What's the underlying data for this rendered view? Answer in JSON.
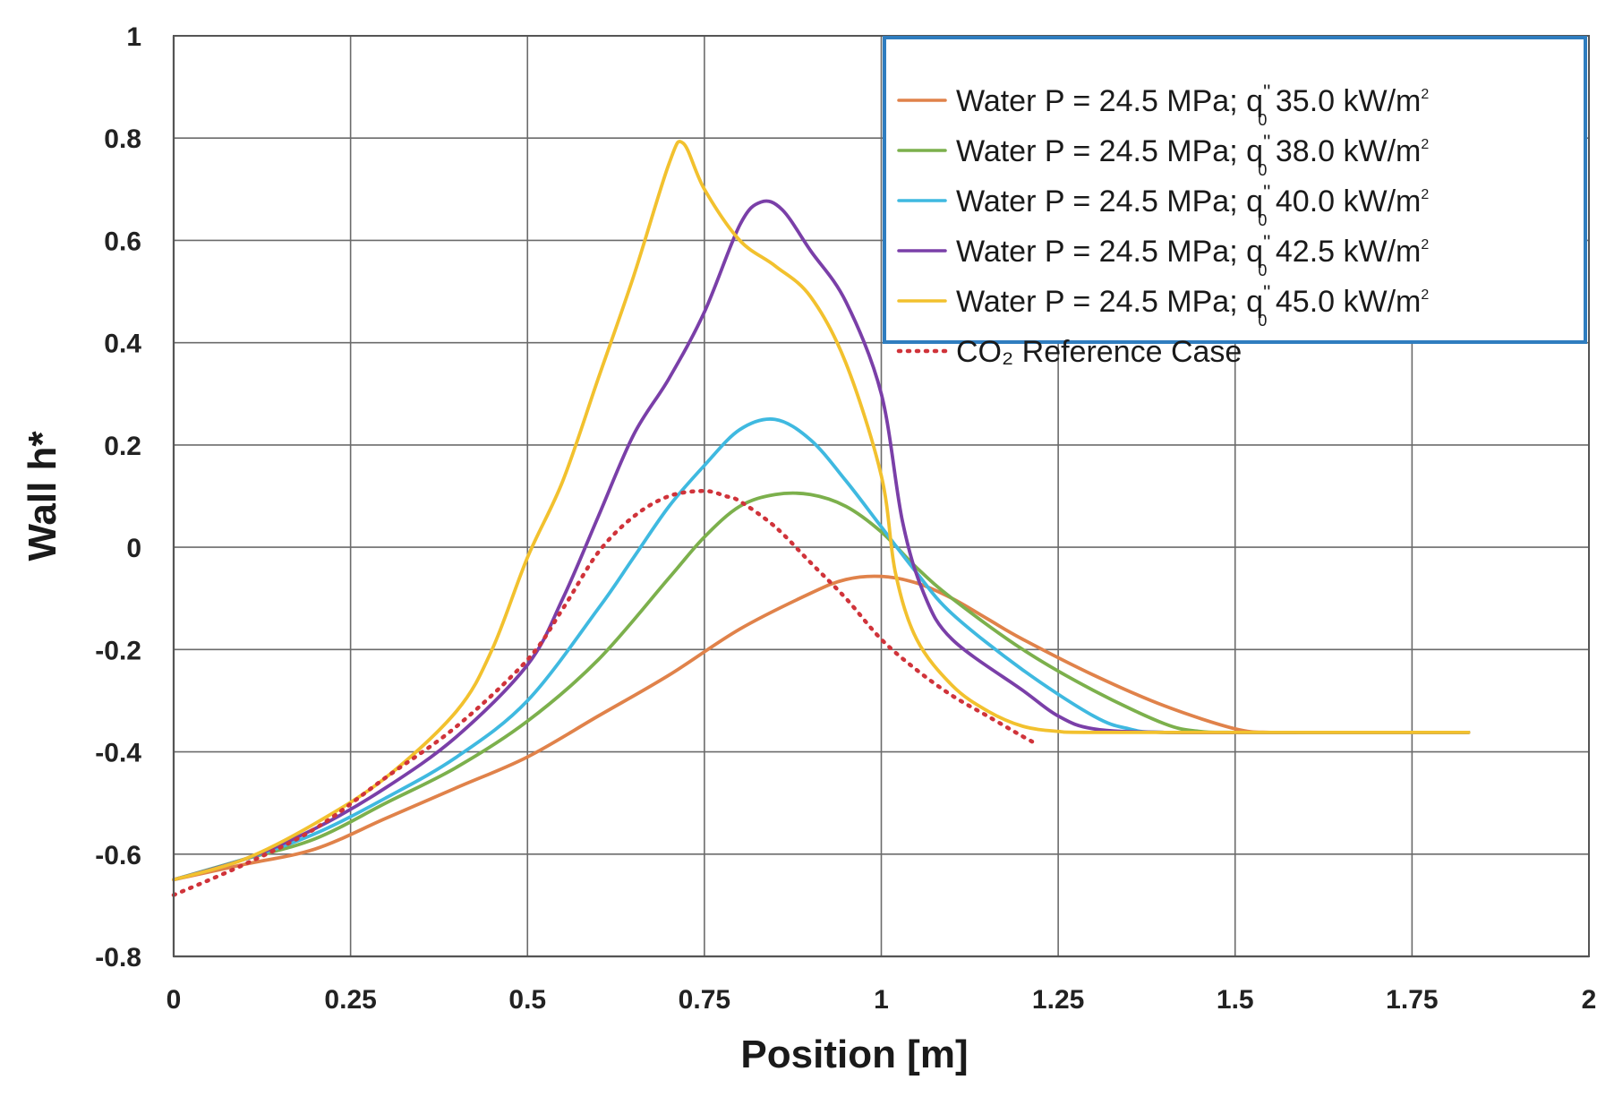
{
  "chart_data": {
    "type": "line",
    "title": "",
    "xlabel": "Position [m]",
    "ylabel": "Wall h*",
    "xlim": [
      0,
      2
    ],
    "ylim": [
      -0.8,
      1
    ],
    "xticks": [
      0,
      0.25,
      0.5,
      0.75,
      1,
      1.25,
      1.5,
      1.75,
      2
    ],
    "yticks": [
      -0.8,
      -0.6,
      -0.4,
      -0.2,
      0,
      0.2,
      0.4,
      0.6,
      0.8,
      1
    ],
    "xtick_labels": [
      "0",
      "0.25",
      "0.5",
      "0.75",
      "1",
      "1.25",
      "1.5",
      "1.75",
      "2"
    ],
    "ytick_labels": [
      "-0.8",
      "-0.6",
      "-0.4",
      "-0.2",
      "0",
      "0.2",
      "0.4",
      "0.6",
      "0.8",
      "1"
    ],
    "grid": true,
    "legend_position": "top-right",
    "series": [
      {
        "name": "Water P = 24.5 MPa; q₀'' 35.0 kW/m²",
        "label_main": "Water P = 24.5 MPa; q",
        "label_sup": "''",
        "label_sub": "0",
        "label_value": " 35.0 kW/m",
        "label_unit_sup": "2",
        "color": "#E0824A",
        "dash": "solid",
        "x": [
          0,
          0.1,
          0.2,
          0.3,
          0.4,
          0.5,
          0.6,
          0.7,
          0.8,
          0.9,
          0.95,
          1.0,
          1.05,
          1.1,
          1.15,
          1.2,
          1.3,
          1.4,
          1.5,
          1.55,
          1.6,
          1.7,
          1.8,
          1.83
        ],
        "y": [
          -0.65,
          -0.62,
          -0.59,
          -0.53,
          -0.47,
          -0.41,
          -0.33,
          -0.25,
          -0.16,
          -0.09,
          -0.063,
          -0.057,
          -0.07,
          -0.1,
          -0.14,
          -0.18,
          -0.25,
          -0.31,
          -0.355,
          -0.362,
          -0.362,
          -0.362,
          -0.362,
          -0.362
        ]
      },
      {
        "name": "Water P = 24.5 MPa; q₀'' 38.0 kW/m²",
        "label_main": "Water P = 24.5 MPa; q",
        "label_sup": "''",
        "label_sub": "0",
        "label_value": " 38.0 kW/m",
        "label_unit_sup": "2",
        "color": "#7CB04C",
        "dash": "solid",
        "x": [
          0,
          0.1,
          0.2,
          0.3,
          0.4,
          0.5,
          0.6,
          0.7,
          0.75,
          0.8,
          0.85,
          0.9,
          0.95,
          1.0,
          1.05,
          1.1,
          1.2,
          1.3,
          1.4,
          1.45,
          1.5,
          1.6,
          1.8,
          1.83
        ],
        "y": [
          -0.65,
          -0.61,
          -0.57,
          -0.5,
          -0.43,
          -0.34,
          -0.22,
          -0.06,
          0.02,
          0.08,
          0.103,
          0.103,
          0.08,
          0.03,
          -0.04,
          -0.1,
          -0.2,
          -0.28,
          -0.345,
          -0.36,
          -0.362,
          -0.362,
          -0.362,
          -0.362
        ]
      },
      {
        "name": "Water P = 24.5 MPa; q₀'' 40.0 kW/m²",
        "label_main": "Water P = 24.5 MPa; q",
        "label_sup": "''",
        "label_sub": "0",
        "label_value": " 40.0 kW/m",
        "label_unit_sup": "2",
        "color": "#3FB9E0",
        "dash": "solid",
        "x": [
          0,
          0.1,
          0.2,
          0.3,
          0.4,
          0.5,
          0.6,
          0.65,
          0.7,
          0.75,
          0.8,
          0.85,
          0.9,
          0.95,
          1.0,
          1.05,
          1.1,
          1.2,
          1.3,
          1.35,
          1.4,
          1.6,
          1.8,
          1.83
        ],
        "y": [
          -0.65,
          -0.61,
          -0.56,
          -0.49,
          -0.41,
          -0.3,
          -0.12,
          -0.02,
          0.08,
          0.16,
          0.23,
          0.25,
          0.21,
          0.13,
          0.04,
          -0.05,
          -0.13,
          -0.24,
          -0.33,
          -0.355,
          -0.362,
          -0.362,
          -0.362,
          -0.362
        ]
      },
      {
        "name": "Water P = 24.5 MPa; q₀'' 42.5 kW/m²",
        "label_main": "Water P = 24.5 MPa; q",
        "label_sup": "''",
        "label_sub": "0",
        "label_value": " 42.5 kW/m",
        "label_unit_sup": "2",
        "color": "#7A3FA8",
        "dash": "solid",
        "x": [
          0,
          0.1,
          0.2,
          0.3,
          0.4,
          0.5,
          0.55,
          0.6,
          0.65,
          0.7,
          0.75,
          0.8,
          0.83,
          0.86,
          0.9,
          0.95,
          1.0,
          1.03,
          1.06,
          1.1,
          1.2,
          1.25,
          1.3,
          1.4,
          1.6,
          1.8,
          1.83
        ],
        "y": [
          -0.65,
          -0.61,
          -0.55,
          -0.47,
          -0.37,
          -0.23,
          -0.1,
          0.06,
          0.22,
          0.33,
          0.46,
          0.63,
          0.675,
          0.66,
          0.58,
          0.48,
          0.3,
          0.05,
          -0.09,
          -0.18,
          -0.28,
          -0.33,
          -0.355,
          -0.362,
          -0.362,
          -0.362,
          -0.362
        ]
      },
      {
        "name": "Water P = 24.5 MPa; q₀'' 45.0 kW/m²",
        "label_main": "Water P = 24.5 MPa; q",
        "label_sup": "''",
        "label_sub": "0",
        "label_value": " 45.0 kW/m",
        "label_unit_sup": "2",
        "color": "#F2C12E",
        "dash": "solid",
        "x": [
          0,
          0.1,
          0.2,
          0.3,
          0.4,
          0.45,
          0.5,
          0.55,
          0.6,
          0.65,
          0.7,
          0.72,
          0.75,
          0.8,
          0.85,
          0.9,
          0.95,
          1.0,
          1.02,
          1.05,
          1.1,
          1.15,
          1.2,
          1.25,
          1.3,
          1.6,
          1.8,
          1.83
        ],
        "y": [
          -0.65,
          -0.61,
          -0.54,
          -0.45,
          -0.32,
          -0.2,
          -0.02,
          0.13,
          0.33,
          0.53,
          0.75,
          0.79,
          0.7,
          0.6,
          0.55,
          0.49,
          0.36,
          0.14,
          -0.05,
          -0.18,
          -0.27,
          -0.32,
          -0.35,
          -0.36,
          -0.362,
          -0.362,
          -0.362,
          -0.362
        ]
      },
      {
        "name": "CO₂ Reference Case",
        "label_main": "CO₂ Reference Case",
        "color": "#D0333A",
        "dash": "dotted",
        "x": [
          0,
          0.1,
          0.2,
          0.3,
          0.4,
          0.5,
          0.55,
          0.6,
          0.65,
          0.7,
          0.75,
          0.78,
          0.8,
          0.85,
          0.9,
          0.95,
          1.0,
          1.05,
          1.1,
          1.15,
          1.2,
          1.22
        ],
        "y": [
          -0.68,
          -0.62,
          -0.55,
          -0.45,
          -0.35,
          -0.22,
          -0.12,
          -0.01,
          0.06,
          0.1,
          0.11,
          0.1,
          0.09,
          0.04,
          -0.03,
          -0.1,
          -0.18,
          -0.24,
          -0.29,
          -0.33,
          -0.37,
          -0.385
        ]
      }
    ]
  }
}
